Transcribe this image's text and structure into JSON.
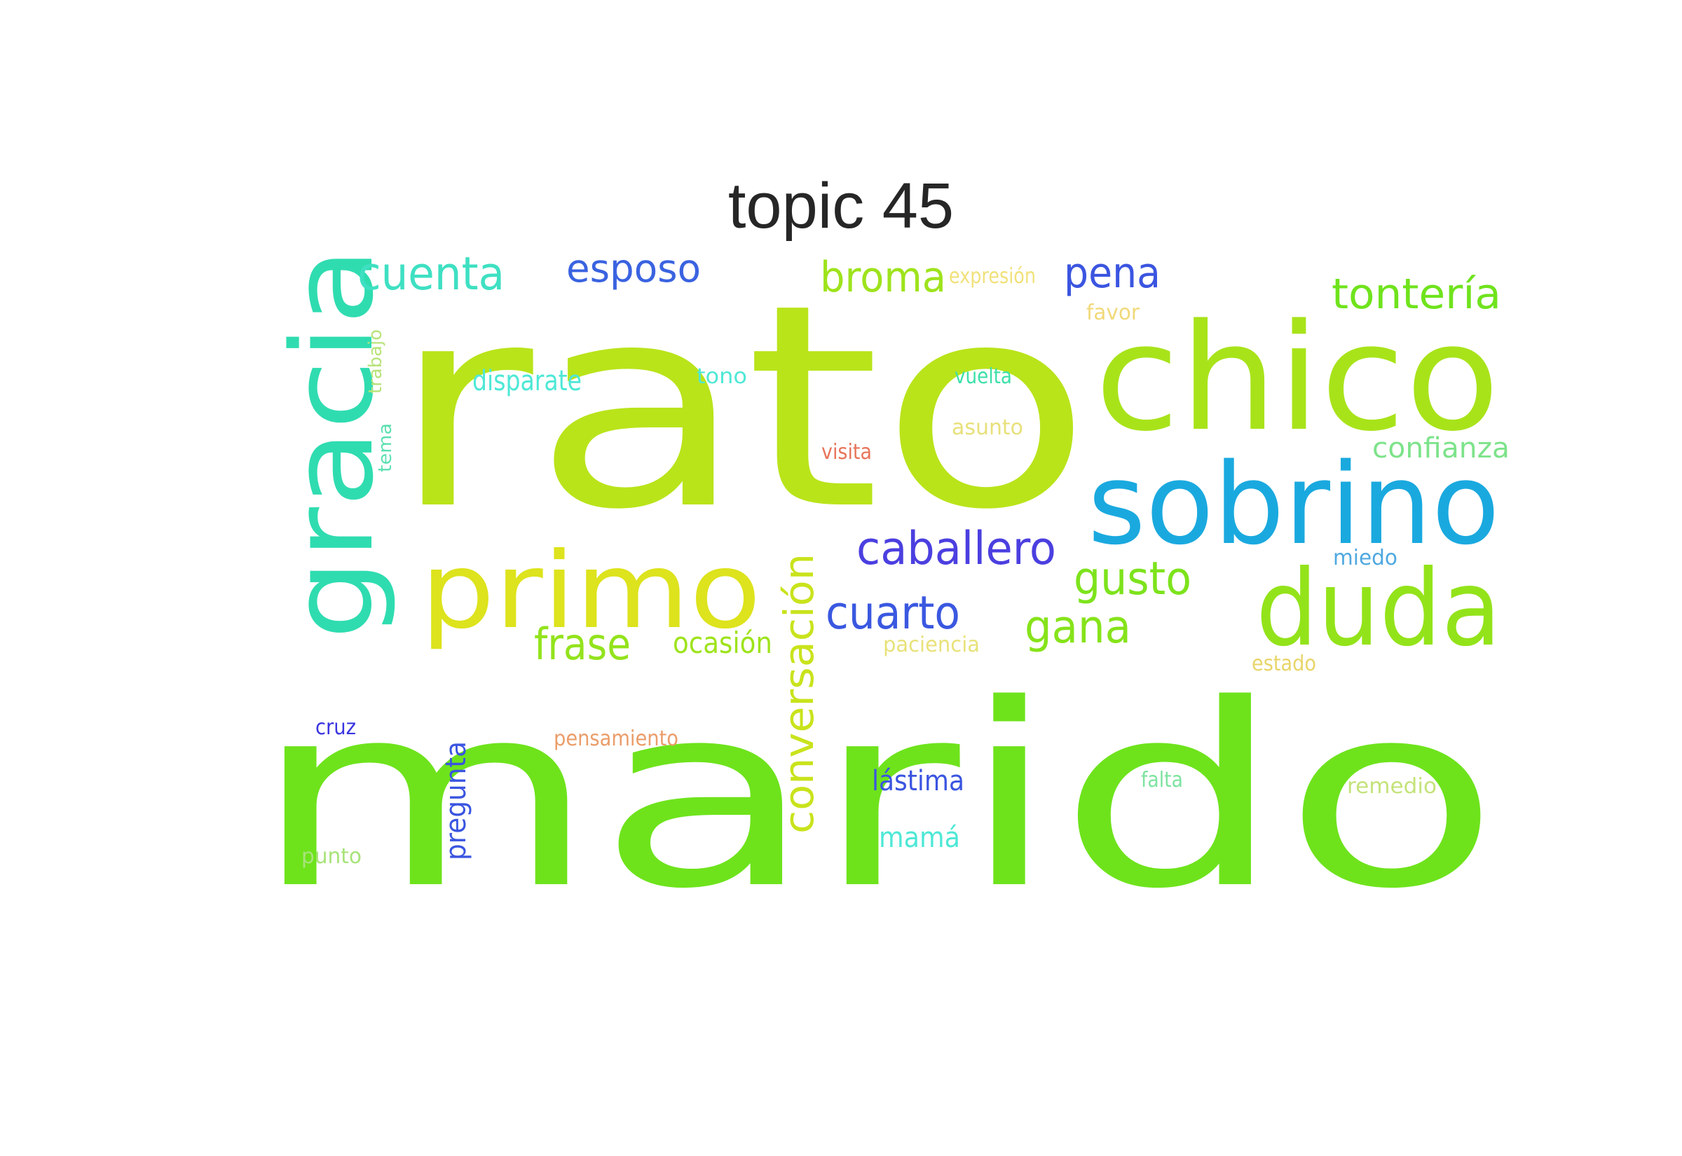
{
  "title": "topic 45",
  "words": [
    {
      "text": "marido",
      "color": "#6ee31c"
    },
    {
      "text": "rato",
      "color": "#b9e41a"
    },
    {
      "text": "chico",
      "color": "#a8e31a"
    },
    {
      "text": "sobrino",
      "color": "#1aa9df"
    },
    {
      "text": "gracia",
      "color": "#2fdcb0"
    },
    {
      "text": "primo",
      "color": "#dde31c"
    },
    {
      "text": "duda",
      "color": "#93e31a"
    },
    {
      "text": "caballero",
      "color": "#4b3fe0"
    },
    {
      "text": "cuarto",
      "color": "#3a58e0"
    },
    {
      "text": "conversación",
      "color": "#c9e31c"
    },
    {
      "text": "gusto",
      "color": "#7de31c"
    },
    {
      "text": "gana",
      "color": "#86e31a"
    },
    {
      "text": "cuenta",
      "color": "#3ee0c2"
    },
    {
      "text": "esposo",
      "color": "#3a63e0"
    },
    {
      "text": "broma",
      "color": "#9ee31c"
    },
    {
      "text": "pena",
      "color": "#3b55e0"
    },
    {
      "text": "tontería",
      "color": "#6fe31c"
    },
    {
      "text": "frase",
      "color": "#93e31c"
    },
    {
      "text": "ocasión",
      "color": "#9ee31c"
    },
    {
      "text": "confianza",
      "color": "#7de38a"
    },
    {
      "text": "disparate",
      "color": "#4ee8d6"
    },
    {
      "text": "lástima",
      "color": "#3b55e0"
    },
    {
      "text": "mamá",
      "color": "#4ee8d6"
    },
    {
      "text": "pregunta",
      "color": "#3a55e0"
    },
    {
      "text": "expresión",
      "color": "#f1e17a"
    },
    {
      "text": "favor",
      "color": "#f1d97a"
    },
    {
      "text": "tono",
      "color": "#4ee8d6"
    },
    {
      "text": "vuelta",
      "color": "#3ee0a8"
    },
    {
      "text": "asunto",
      "color": "#e8e07a"
    },
    {
      "text": "visita",
      "color": "#e8745a"
    },
    {
      "text": "trabajo",
      "color": "#b7e37a"
    },
    {
      "text": "tema",
      "color": "#5be0b0"
    },
    {
      "text": "miedo",
      "color": "#4fa8e0"
    },
    {
      "text": "paciencia",
      "color": "#e8e27a"
    },
    {
      "text": "estado",
      "color": "#e8d56a"
    },
    {
      "text": "cruz",
      "color": "#3a34e0"
    },
    {
      "text": "pensamiento",
      "color": "#eb9d6a"
    },
    {
      "text": "falta",
      "color": "#7de3a0"
    },
    {
      "text": "remedio",
      "color": "#c4e37a"
    },
    {
      "text": "punto",
      "color": "#a8e37a"
    }
  ]
}
